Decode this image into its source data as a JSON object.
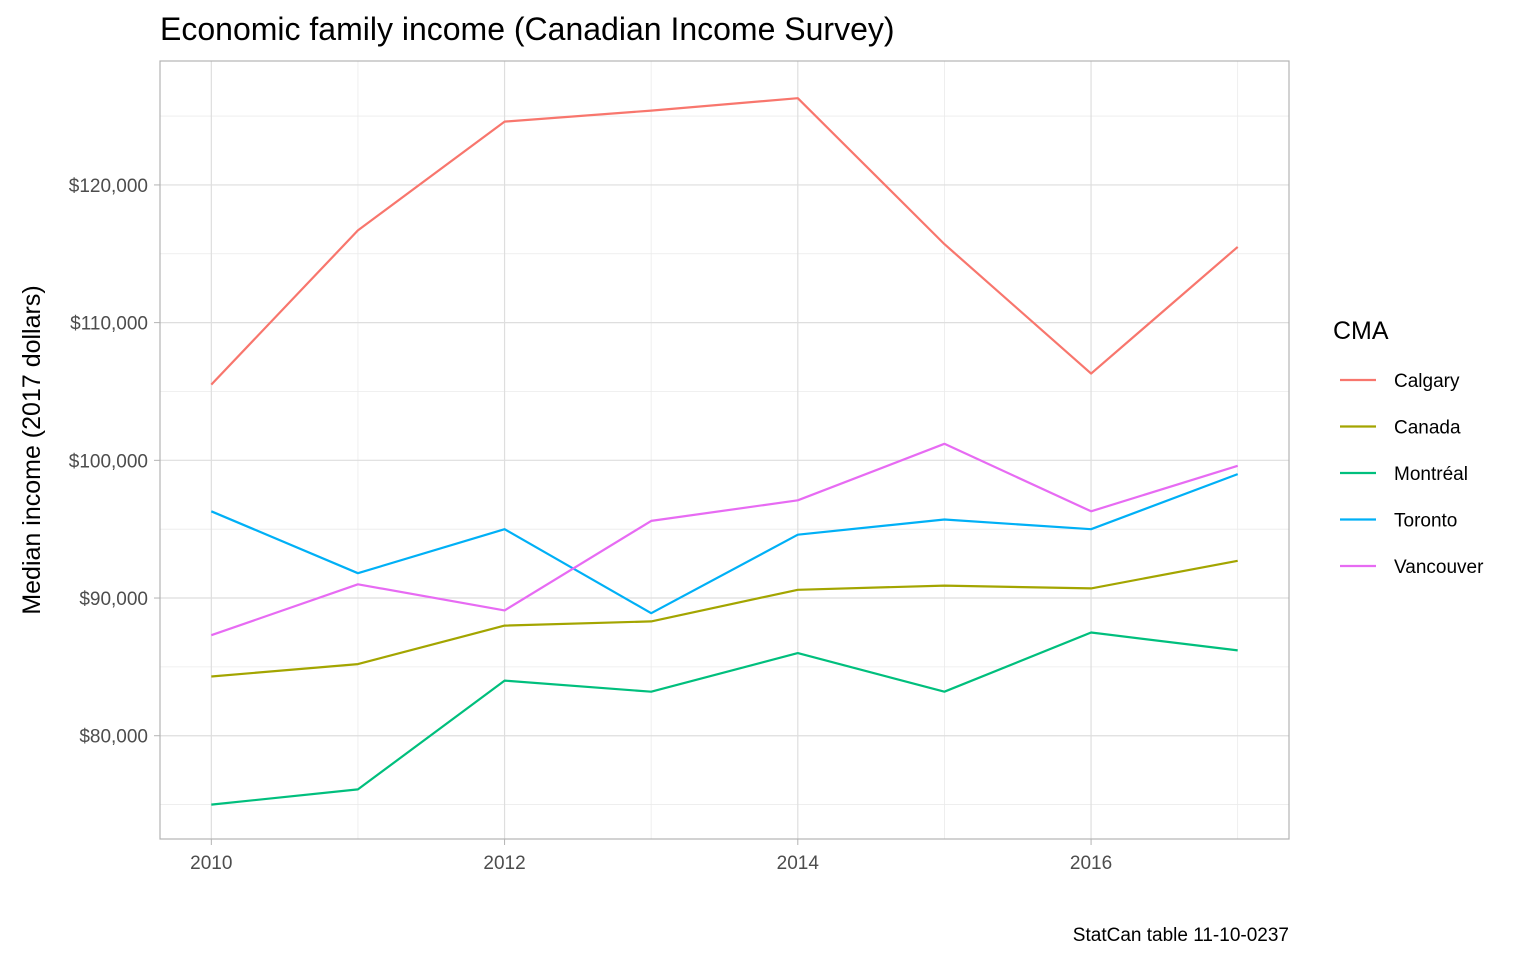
{
  "chart_data": {
    "type": "line",
    "title": "Economic family income (Canadian Income Survey)",
    "xlabel": "",
    "ylabel": "Median income (2017 dollars)",
    "caption": "StatCan table 11-10-0237",
    "x": [
      2010,
      2011,
      2012,
      2013,
      2014,
      2015,
      2016,
      2017
    ],
    "x_ticks": [
      "2010",
      "2012",
      "2014",
      "2016"
    ],
    "y_ticks": [
      "$80,000",
      "$90,000",
      "$100,000",
      "$110,000",
      "$120,000"
    ],
    "xlim": [
      2009.65,
      2017.35
    ],
    "ylim": [
      72500,
      129000
    ],
    "grid": true,
    "legend": {
      "title": "CMA",
      "position": "right"
    },
    "series": [
      {
        "name": "Calgary",
        "color": "#F8766D",
        "values": [
          105500,
          116700,
          124600,
          125400,
          126300,
          115700,
          106300,
          115500
        ]
      },
      {
        "name": "Canada",
        "color": "#A3A500",
        "values": [
          84300,
          85200,
          88000,
          88300,
          90600,
          90900,
          90700,
          92700
        ]
      },
      {
        "name": "Montréal",
        "color": "#00BF7D",
        "values": [
          75000,
          76100,
          84000,
          83200,
          86000,
          83200,
          87500,
          86200
        ]
      },
      {
        "name": "Toronto",
        "color": "#00B0F6",
        "values": [
          96300,
          91800,
          95000,
          88900,
          94600,
          95700,
          95000,
          99000
        ]
      },
      {
        "name": "Vancouver",
        "color": "#E76BF3",
        "values": [
          87300,
          91000,
          89100,
          95600,
          97100,
          101200,
          96300,
          99600
        ]
      }
    ]
  }
}
